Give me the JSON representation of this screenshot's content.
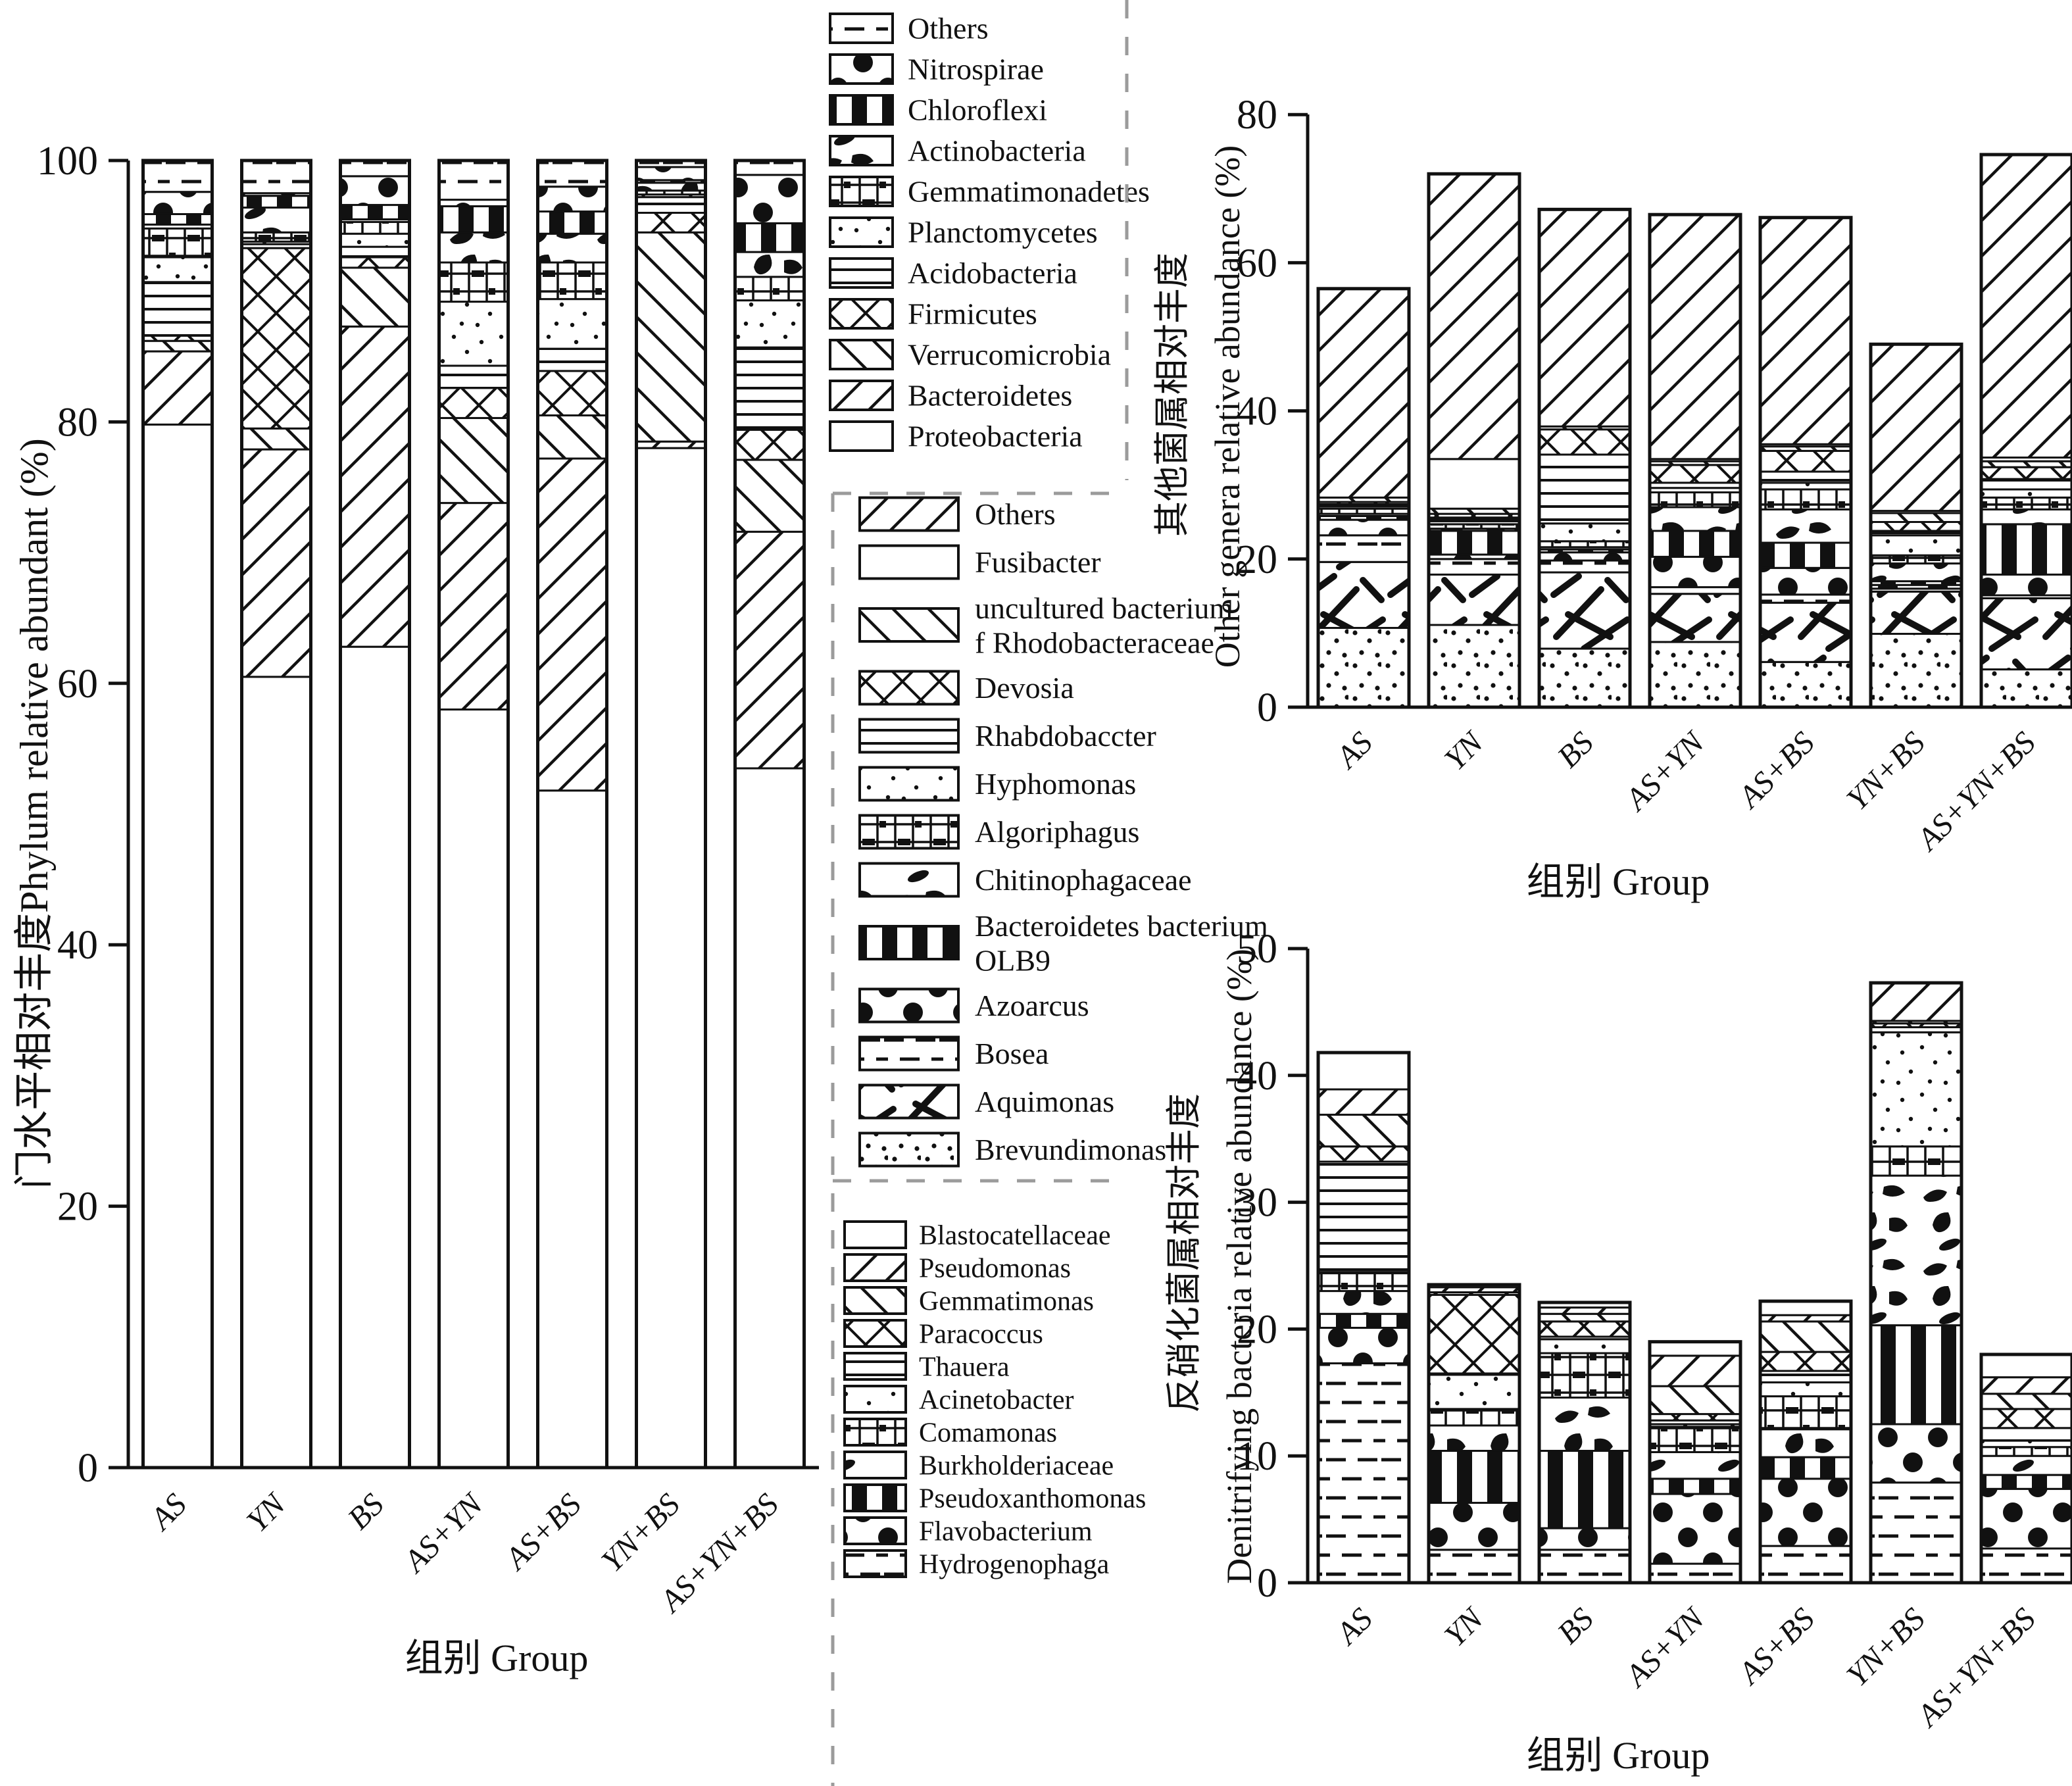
{
  "figure": {
    "background": "#ffffff",
    "ink_color": "#111111",
    "separator_color": "#9b9b9b",
    "group_axis_title": "组别 Group",
    "groups": [
      "AS",
      "YN",
      "BS",
      "AS+YN",
      "AS+BS",
      "YN+BS",
      "AS+YN+BS"
    ]
  },
  "chart_data": [
    {
      "id": "phylum",
      "type": "bar",
      "stacked": true,
      "ylabel": "门水平相对丰度Phylum relative abundant (%)",
      "xlabel": "组别 Group",
      "ylim": [
        0,
        100
      ],
      "yticks": [
        0,
        20,
        40,
        60,
        80,
        100
      ],
      "grid": false,
      "categories": [
        "AS",
        "YN",
        "BS",
        "AS+YN",
        "AS+BS",
        "YN+BS",
        "AS+YN+BS"
      ],
      "series": [
        {
          "name": "Proteobacteria",
          "pattern": "plain",
          "values": [
            79.8,
            60.5,
            62.8,
            58.0,
            51.8,
            78.0,
            53.5
          ]
        },
        {
          "name": "Bacteroidetes",
          "pattern": "fslash",
          "values": [
            5.6,
            17.4,
            24.5,
            15.8,
            25.4,
            0.5,
            18.1
          ]
        },
        {
          "name": "Verrucomicrobia",
          "pattern": "bslash",
          "values": [
            0.8,
            1.6,
            4.5,
            6.5,
            3.3,
            16.0,
            5.5
          ]
        },
        {
          "name": "Firmicutes",
          "pattern": "xhatch",
          "values": [
            0.4,
            13.8,
            0.8,
            2.3,
            3.4,
            1.5,
            2.3
          ]
        },
        {
          "name": "Acidobacteria",
          "pattern": "hlines",
          "values": [
            4.1,
            0.3,
            0.8,
            1.7,
            1.7,
            1.2,
            6.3
          ]
        },
        {
          "name": "Planctomycetes",
          "pattern": "dots",
          "values": [
            1.9,
            0.2,
            1.0,
            4.9,
            3.8,
            0.2,
            3.6
          ]
        },
        {
          "name": "Gemmatimonadetes",
          "pattern": "grid",
          "values": [
            2.2,
            0.7,
            0.9,
            3.0,
            2.8,
            0.3,
            1.8
          ]
        },
        {
          "name": "Actinobacteria",
          "pattern": "blobs",
          "values": [
            0.3,
            1.9,
            0.2,
            2.3,
            2.2,
            0.6,
            1.9
          ]
        },
        {
          "name": "Chloroflexi",
          "pattern": "vbars",
          "values": [
            0.8,
            0.9,
            1.1,
            2.0,
            1.7,
            0.2,
            2.2
          ]
        },
        {
          "name": "Nitrospirae",
          "pattern": "circles",
          "values": [
            1.7,
            0.2,
            2.2,
            0.5,
            1.9,
            1.0,
            3.7
          ]
        },
        {
          "name": "Others",
          "pattern": "dash",
          "values": [
            2.4,
            2.5,
            1.2,
            3.0,
            2.0,
            0.5,
            1.1
          ]
        }
      ]
    },
    {
      "id": "other-genera",
      "type": "bar",
      "stacked": true,
      "ylabel_zh": "其他菌属相对丰度",
      "ylabel_en": "Other genera relative abundance (%)",
      "xlabel": "组别 Group",
      "ylim": [
        0,
        80
      ],
      "yticks": [
        0,
        20,
        40,
        60,
        80
      ],
      "grid": false,
      "categories": [
        "AS",
        "YN",
        "BS",
        "AS+YN",
        "AS+BS",
        "YN+BS",
        "AS+YN+BS"
      ],
      "series": [
        {
          "name": "Brevundimonas",
          "pattern": "dotted",
          "values": [
            10.7,
            11.1,
            7.9,
            8.8,
            6.1,
            9.9,
            5.1
          ]
        },
        {
          "name": "Aquimonas",
          "pattern": "strokes",
          "values": [
            8.9,
            6.8,
            10.3,
            6.5,
            8.0,
            5.7,
            9.6
          ]
        },
        {
          "name": "Bosea",
          "pattern": "dash",
          "values": [
            3.6,
            2.1,
            1.6,
            0.9,
            1.1,
            0.4,
            0.4
          ]
        },
        {
          "name": "Azoarcus",
          "pattern": "circles",
          "values": [
            2.1,
            0.6,
            1.1,
            4.1,
            3.6,
            0.5,
            2.8
          ]
        },
        {
          "name": "Bacteroidetes bacterium OLB9",
          "pattern": "vbars",
          "values": [
            0.5,
            3.2,
            0.4,
            3.5,
            3.4,
            0.5,
            6.8
          ]
        },
        {
          "name": "Chitinophagaceae",
          "pattern": "blobs",
          "values": [
            0.3,
            0.3,
            0.3,
            3.2,
            4.5,
            2.4,
            2.0
          ]
        },
        {
          "name": "Algoriphagus",
          "pattern": "grid",
          "values": [
            0.7,
            0.6,
            0.8,
            2.0,
            2.7,
            1.1,
            1.6
          ]
        },
        {
          "name": "Hyphomonas",
          "pattern": "dots",
          "values": [
            0.3,
            0.4,
            2.4,
            0.6,
            0.9,
            2.7,
            1.1
          ]
        },
        {
          "name": "Rhabdobaccter",
          "pattern": "hlines",
          "values": [
            0.3,
            0.5,
            9.3,
            0.7,
            1.5,
            0.6,
            1.4
          ]
        },
        {
          "name": "Devosia",
          "pattern": "xhatch",
          "values": [
            0.3,
            0.5,
            3.4,
            2.4,
            2.8,
            1.2,
            1.6
          ]
        },
        {
          "name": "uncultured bacterium f Rhodobacteraceae",
          "pattern": "bslash",
          "values": [
            0.6,
            0.7,
            0.4,
            0.5,
            0.6,
            1.2,
            0.8
          ]
        },
        {
          "name": "Fusibacter",
          "pattern": "plain",
          "values": [
            0.0,
            6.7,
            0.0,
            0.3,
            0.3,
            0.3,
            0.5
          ]
        },
        {
          "name": "Others",
          "pattern": "fslash",
          "values": [
            28.2,
            38.5,
            29.3,
            33.0,
            30.6,
            22.5,
            40.9
          ]
        }
      ]
    },
    {
      "id": "denitrifying",
      "type": "bar",
      "stacked": true,
      "ylabel_zh": "反硝化菌属相对丰度",
      "ylabel_en": "Denitrifying bacteria relative abundance (%)",
      "xlabel": "组别 Group",
      "ylim": [
        0,
        50
      ],
      "yticks": [
        0,
        10,
        20,
        30,
        40,
        50
      ],
      "grid": false,
      "categories": [
        "AS",
        "YN",
        "BS",
        "AS+YN",
        "AS+BS",
        "YN+BS",
        "AS+YN+BS"
      ],
      "series": [
        {
          "name": "Hydrogenophaga",
          "pattern": "dash",
          "values": [
            17.3,
            2.6,
            2.6,
            1.5,
            2.9,
            7.9,
            2.7
          ]
        },
        {
          "name": "Flavobacterium",
          "pattern": "circles",
          "values": [
            2.8,
            3.7,
            1.7,
            5.5,
            5.3,
            4.6,
            4.7
          ]
        },
        {
          "name": "Pseudoxanthomonas",
          "pattern": "vbars",
          "values": [
            1.1,
            4.1,
            6.1,
            1.2,
            1.7,
            7.8,
            1.1
          ]
        },
        {
          "name": "Burkholderiaceae",
          "pattern": "blobs",
          "values": [
            1.8,
            2.0,
            4.2,
            2.1,
            2.2,
            11.8,
            1.5
          ]
        },
        {
          "name": "Comamonas",
          "pattern": "grid",
          "values": [
            1.4,
            1.3,
            3.5,
            2.0,
            2.6,
            2.3,
            0.7
          ]
        },
        {
          "name": "Acinetobacter",
          "pattern": "dots",
          "values": [
            0.1,
            2.7,
            1.1,
            0.2,
            1.1,
            9.0,
            0.5
          ]
        },
        {
          "name": "Thauera",
          "pattern": "hlines",
          "values": [
            8.7,
            0.1,
            0.2,
            0.3,
            0.9,
            0.4,
            1.0
          ]
        },
        {
          "name": "Paracoccus",
          "pattern": "xhatch",
          "values": [
            1.2,
            6.2,
            1.2,
            0.5,
            1.5,
            0.3,
            1.5
          ]
        },
        {
          "name": "Gemmatimonas",
          "pattern": "bslash",
          "values": [
            2.5,
            0.2,
            0.6,
            2.2,
            2.4,
            0.2,
            1.2
          ]
        },
        {
          "name": "Pseudomonas",
          "pattern": "fslash",
          "values": [
            2.0,
            0.4,
            0.5,
            2.4,
            0.5,
            3.0,
            1.3
          ]
        },
        {
          "name": "Blastocatellaceae",
          "pattern": "plain",
          "values": [
            2.9,
            0.2,
            0.4,
            1.1,
            1.1,
            0.0,
            1.8
          ]
        }
      ]
    }
  ],
  "legends": [
    {
      "id": "phylum-legend",
      "items": [
        {
          "label": "Others",
          "pattern": "dash"
        },
        {
          "label": "Nitrospirae",
          "pattern": "circles"
        },
        {
          "label": "Chloroflexi",
          "pattern": "vbars"
        },
        {
          "label": "Actinobacteria",
          "pattern": "blobs"
        },
        {
          "label": "Gemmatimonadetes",
          "pattern": "grid"
        },
        {
          "label": "Planctomycetes",
          "pattern": "dots"
        },
        {
          "label": "Acidobacteria",
          "pattern": "hlines"
        },
        {
          "label": "Firmicutes",
          "pattern": "xhatch"
        },
        {
          "label": "Verrucomicrobia",
          "pattern": "bslash"
        },
        {
          "label": "Bacteroidetes",
          "pattern": "fslash"
        },
        {
          "label": "Proteobacteria",
          "pattern": "plain"
        }
      ]
    },
    {
      "id": "genera-legend",
      "items": [
        {
          "label": "Others",
          "pattern": "fslash"
        },
        {
          "label": "Fusibacter",
          "pattern": "plain"
        },
        {
          "label": "uncultured bacterium|f Rhodobacteraceae",
          "pattern": "bslash"
        },
        {
          "label": "Devosia",
          "pattern": "xhatch"
        },
        {
          "label": "Rhabdobaccter",
          "pattern": "hlines"
        },
        {
          "label": "Hyphomonas",
          "pattern": "dots"
        },
        {
          "label": "Algoriphagus",
          "pattern": "grid"
        },
        {
          "label": "Chitinophagaceae",
          "pattern": "blobs"
        },
        {
          "label": "Bacteroidetes bacterium|OLB9",
          "pattern": "vbars"
        },
        {
          "label": "Azoarcus",
          "pattern": "circles"
        },
        {
          "label": "Bosea",
          "pattern": "dash"
        },
        {
          "label": "Aquimonas",
          "pattern": "strokes"
        },
        {
          "label": "Brevundimonas",
          "pattern": "dotted"
        }
      ]
    },
    {
      "id": "denitrifying-legend",
      "items": [
        {
          "label": "Blastocatellaceae",
          "pattern": "plain"
        },
        {
          "label": "Pseudomonas",
          "pattern": "fslash"
        },
        {
          "label": "Gemmatimonas",
          "pattern": "bslash"
        },
        {
          "label": "Paracoccus",
          "pattern": "xhatch"
        },
        {
          "label": "Thauera",
          "pattern": "hlines"
        },
        {
          "label": "Acinetobacter",
          "pattern": "dots"
        },
        {
          "label": "Comamonas",
          "pattern": "grid"
        },
        {
          "label": "Burkholderiaceae",
          "pattern": "blobs"
        },
        {
          "label": "Pseudoxanthomonas",
          "pattern": "vbars"
        },
        {
          "label": "Flavobacterium",
          "pattern": "circles"
        },
        {
          "label": "Hydrogenophaga",
          "pattern": "dash"
        }
      ]
    }
  ]
}
